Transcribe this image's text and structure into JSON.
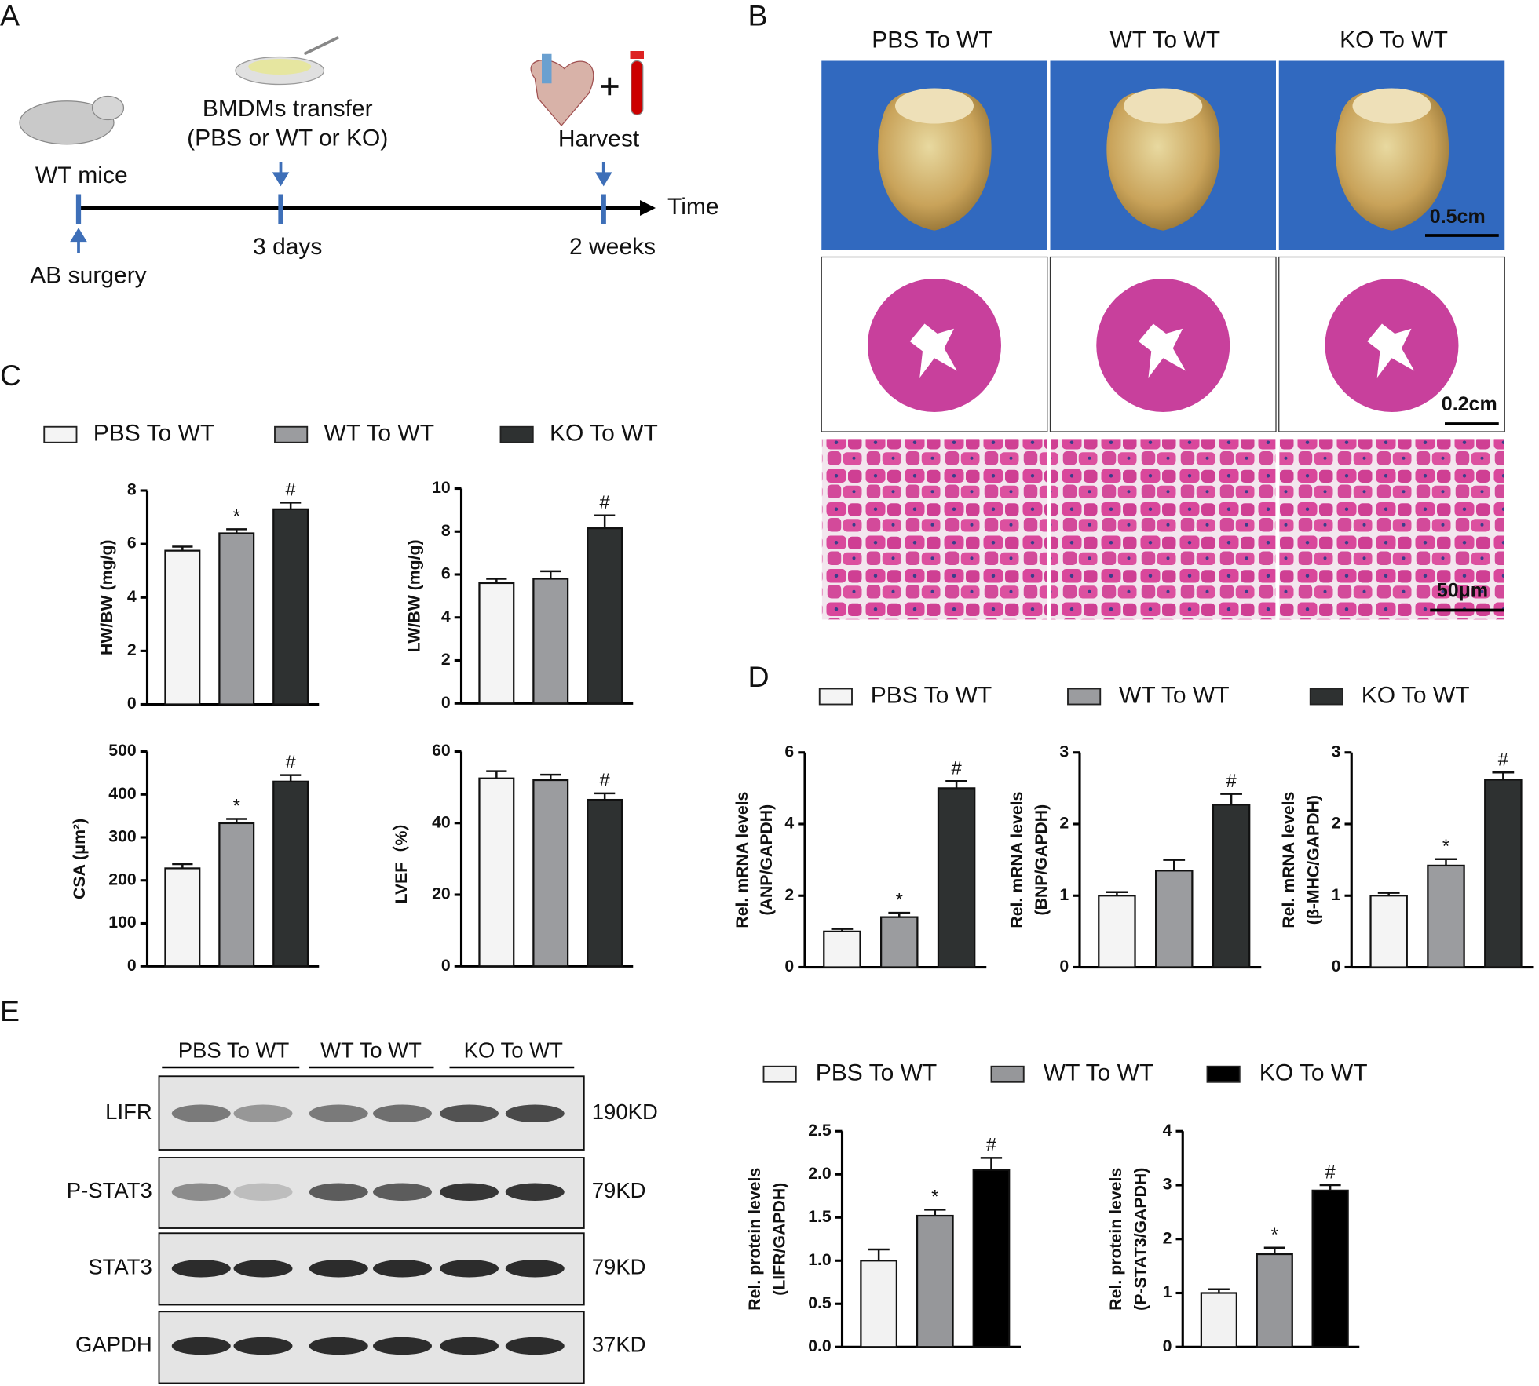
{
  "panel_a": {
    "label": "A",
    "subject": "WT mice",
    "surgery": "AB surgery",
    "transfer": [
      "BMDMs transfer",
      "(PBS or WT or KO)"
    ],
    "harvest": "Harvest",
    "timepoints": [
      "3 days",
      "2 weeks"
    ],
    "axis": "Time"
  },
  "panel_b": {
    "label": "B",
    "columns": [
      "PBS To WT",
      "WT To WT",
      "KO To WT"
    ],
    "scale_bars": [
      "0.5cm",
      "0.2cm",
      "50μm"
    ]
  },
  "panel_c": {
    "label": "C",
    "legend": [
      {
        "name": "PBS To WT",
        "color": "#f4f4f4"
      },
      {
        "name": "WT To WT",
        "color": "#9b9c9f"
      },
      {
        "name": "KO To WT",
        "color": "#2e3131"
      }
    ]
  },
  "panel_d": {
    "label": "D",
    "legend": [
      {
        "name": "PBS To WT",
        "color": "#f4f4f4"
      },
      {
        "name": "WT To WT",
        "color": "#9b9c9f"
      },
      {
        "name": "KO To WT",
        "color": "#2e3131"
      }
    ]
  },
  "panel_e": {
    "label": "E",
    "groups": [
      "PBS To WT",
      "WT To WT",
      "KO To WT"
    ],
    "rows": [
      {
        "name": "LIFR",
        "size": "190KD"
      },
      {
        "name": "P-STAT3",
        "size": "79KD"
      },
      {
        "name": "STAT3",
        "size": "79KD"
      },
      {
        "name": "GAPDH",
        "size": "37KD"
      }
    ],
    "legend": [
      {
        "name": "PBS To WT",
        "color": "#f2f2f2"
      },
      {
        "name": "WT To WT",
        "color": "#96979a"
      },
      {
        "name": "KO To WT",
        "color": "#000000"
      }
    ]
  },
  "chart_data": [
    {
      "type": "bar",
      "ylabel": [
        "HW/BW (mg/g)"
      ],
      "categories": [
        null,
        null,
        null
      ],
      "values": [
        5.75,
        6.4,
        7.3
      ],
      "errors": [
        0.15,
        0.15,
        0.25
      ],
      "colors": [
        "#f4f4f4",
        "#9b9c9f",
        "#2e3131"
      ],
      "annotations": [
        null,
        "*",
        "#"
      ],
      "ylim": [
        0,
        8
      ],
      "yticks": [
        0,
        2,
        4,
        6,
        8
      ]
    },
    {
      "type": "bar",
      "ylabel": [
        "LW/BW (mg/g)"
      ],
      "categories": [
        null,
        null,
        null
      ],
      "values": [
        5.6,
        5.8,
        8.15
      ],
      "errors": [
        0.2,
        0.35,
        0.6
      ],
      "colors": [
        "#f4f4f4",
        "#9b9c9f",
        "#2e3131"
      ],
      "annotations": [
        null,
        null,
        "#"
      ],
      "ylim": [
        0,
        10
      ],
      "yticks": [
        0,
        2,
        4,
        6,
        8,
        10
      ]
    },
    {
      "type": "bar",
      "ylabel": [
        "CSA (μm²)"
      ],
      "categories": [
        null,
        null,
        null
      ],
      "values": [
        228,
        333,
        430
      ],
      "errors": [
        10,
        10,
        15
      ],
      "colors": [
        "#f4f4f4",
        "#9b9c9f",
        "#2e3131"
      ],
      "annotations": [
        null,
        "*",
        "#"
      ],
      "ylim": [
        0,
        500
      ],
      "yticks": [
        0,
        100,
        200,
        300,
        400,
        500
      ]
    },
    {
      "type": "bar",
      "ylabel": [
        "LVEF（%）"
      ],
      "categories": [
        null,
        null,
        null
      ],
      "values": [
        52.5,
        52,
        46.5
      ],
      "errors": [
        2,
        1.5,
        1.8
      ],
      "colors": [
        "#f4f4f4",
        "#9b9c9f",
        "#2e3131"
      ],
      "annotations": [
        null,
        null,
        "#"
      ],
      "ylim": [
        0,
        60
      ],
      "yticks": [
        0,
        20,
        40,
        60
      ]
    },
    {
      "type": "bar",
      "ylabel": [
        "Rel. mRNA levels",
        "(ANP/GAPDH)"
      ],
      "categories": [
        null,
        null,
        null
      ],
      "values": [
        1.0,
        1.4,
        5.0
      ],
      "errors": [
        0.07,
        0.12,
        0.2
      ],
      "colors": [
        "#f4f4f4",
        "#9b9c9f",
        "#2e3131"
      ],
      "annotations": [
        null,
        "*",
        "#"
      ],
      "ylim": [
        0,
        6
      ],
      "yticks": [
        0,
        2,
        4,
        6
      ]
    },
    {
      "type": "bar",
      "ylabel": [
        "Rel. mRNA levels",
        "(BNP/GAPDH)"
      ],
      "categories": [
        null,
        null,
        null
      ],
      "values": [
        1.0,
        1.35,
        2.27
      ],
      "errors": [
        0.05,
        0.15,
        0.15
      ],
      "colors": [
        "#f4f4f4",
        "#9b9c9f",
        "#2e3131"
      ],
      "annotations": [
        null,
        null,
        "#"
      ],
      "ylim": [
        0,
        3
      ],
      "yticks": [
        0,
        1,
        2,
        3
      ]
    },
    {
      "type": "bar",
      "ylabel": [
        "Rel. mRNA levels",
        "(β-MHC/GAPDH)"
      ],
      "categories": [
        null,
        null,
        null
      ],
      "values": [
        1.0,
        1.42,
        2.62
      ],
      "errors": [
        0.04,
        0.09,
        0.1
      ],
      "colors": [
        "#f4f4f4",
        "#9b9c9f",
        "#2e3131"
      ],
      "annotations": [
        null,
        "*",
        "#"
      ],
      "ylim": [
        0,
        3
      ],
      "yticks": [
        0,
        1,
        2,
        3
      ]
    },
    {
      "type": "bar",
      "ylabel": [
        "Rel. protein levels",
        "(LIFR/GAPDH)"
      ],
      "categories": [
        null,
        null,
        null
      ],
      "values": [
        1.0,
        1.52,
        2.05
      ],
      "errors": [
        0.13,
        0.07,
        0.14
      ],
      "colors": [
        "#f2f2f2",
        "#96979a",
        "#000000"
      ],
      "annotations": [
        null,
        "*",
        "#"
      ],
      "ylim": [
        0,
        2.5
      ],
      "yticks": [
        {
          "value": 0,
          "label": "0.0"
        },
        0.5,
        {
          "value": 1,
          "label": "1.0"
        },
        1.5,
        {
          "value": 2,
          "label": "2.0"
        },
        2.5
      ]
    },
    {
      "type": "bar",
      "ylabel": [
        "Rel. protein levels",
        "(P-STAT3/GAPDH)"
      ],
      "categories": [
        null,
        null,
        null
      ],
      "values": [
        1.0,
        1.72,
        2.9
      ],
      "errors": [
        0.07,
        0.12,
        0.1
      ],
      "colors": [
        "#f2f2f2",
        "#96979a",
        "#000000"
      ],
      "annotations": [
        null,
        "*",
        "#"
      ],
      "ylim": [
        0,
        4
      ],
      "yticks": [
        0,
        1,
        2,
        3,
        4
      ]
    }
  ]
}
